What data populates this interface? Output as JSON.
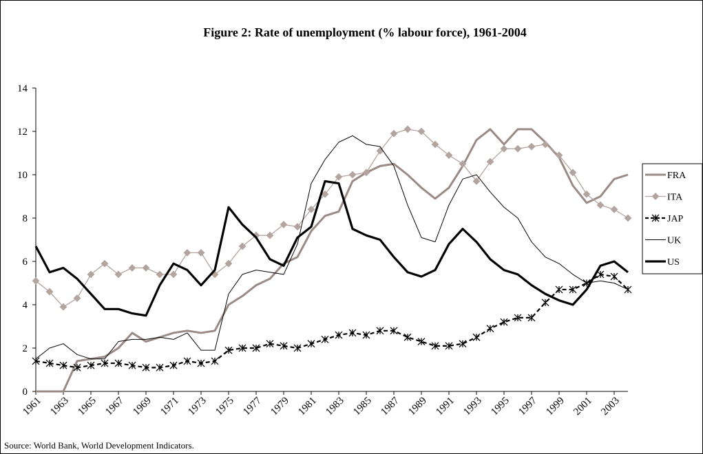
{
  "chart_data": {
    "type": "line",
    "title": "Figure 2: Rate of unemployment (% labour force), 1961-2004",
    "source": "Source: World Bank, World Development Indicators.",
    "x": [
      1961,
      1962,
      1963,
      1964,
      1965,
      1966,
      1967,
      1968,
      1969,
      1970,
      1971,
      1972,
      1973,
      1974,
      1975,
      1976,
      1977,
      1978,
      1979,
      1980,
      1981,
      1982,
      1983,
      1984,
      1985,
      1986,
      1987,
      1988,
      1989,
      1990,
      1991,
      1992,
      1993,
      1994,
      1995,
      1996,
      1997,
      1998,
      1999,
      2000,
      2001,
      2002,
      2003,
      2004
    ],
    "xlim": [
      1961,
      2004
    ],
    "xticks": [
      1961,
      1963,
      1965,
      1967,
      1969,
      1971,
      1973,
      1975,
      1977,
      1979,
      1981,
      1983,
      1985,
      1987,
      1989,
      1991,
      1993,
      1995,
      1997,
      1999,
      2001,
      2003
    ],
    "ylim": [
      0,
      14
    ],
    "yticks": [
      0,
      2,
      4,
      6,
      8,
      10,
      12,
      14
    ],
    "legend": "right",
    "series": [
      {
        "name": "FRA",
        "color": "#9a8a86",
        "width": 3,
        "dash": "solid",
        "marker": "none",
        "values": [
          0,
          0,
          0,
          1.4,
          1.5,
          1.6,
          2.0,
          2.7,
          2.3,
          2.5,
          2.7,
          2.8,
          2.7,
          2.8,
          4.0,
          4.4,
          4.9,
          5.2,
          5.9,
          6.2,
          7.4,
          8.1,
          8.3,
          9.7,
          10.1,
          10.4,
          10.5,
          10.0,
          9.4,
          8.9,
          9.4,
          10.4,
          11.6,
          12.1,
          11.4,
          12.1,
          12.1,
          11.5,
          10.8,
          9.5,
          8.7,
          9.0,
          9.8,
          10.0
        ]
      },
      {
        "name": "ITA",
        "color": "#b3a49f",
        "width": 1.3,
        "dash": "solid",
        "marker": "diamond",
        "values": [
          5.1,
          4.6,
          3.9,
          4.3,
          5.4,
          5.9,
          5.4,
          5.7,
          5.7,
          5.4,
          5.4,
          6.4,
          6.4,
          5.4,
          5.9,
          6.7,
          7.2,
          7.2,
          7.7,
          7.6,
          8.4,
          9.1,
          9.9,
          10.0,
          10.1,
          11.1,
          11.9,
          12.1,
          12.0,
          11.4,
          10.9,
          10.5,
          9.7,
          10.6,
          11.2,
          11.2,
          11.3,
          11.4,
          10.9,
          10.1,
          9.1,
          8.6,
          8.4,
          8.0
        ]
      },
      {
        "name": "JAP",
        "color": "#000000",
        "width": 2.2,
        "dash": "dashed",
        "marker": "star",
        "values": [
          1.4,
          1.3,
          1.2,
          1.1,
          1.2,
          1.3,
          1.3,
          1.2,
          1.1,
          1.1,
          1.2,
          1.4,
          1.3,
          1.4,
          1.9,
          2.0,
          2.0,
          2.2,
          2.1,
          2.0,
          2.2,
          2.4,
          2.6,
          2.7,
          2.6,
          2.8,
          2.8,
          2.5,
          2.3,
          2.1,
          2.1,
          2.2,
          2.5,
          2.9,
          3.2,
          3.4,
          3.4,
          4.1,
          4.7,
          4.7,
          5.0,
          5.4,
          5.3,
          4.7
        ]
      },
      {
        "name": "UK",
        "color": "#000000",
        "width": 1,
        "dash": "solid",
        "marker": "none",
        "values": [
          1.5,
          2.0,
          2.2,
          1.7,
          1.5,
          1.5,
          2.3,
          2.4,
          2.4,
          2.5,
          2.4,
          2.7,
          1.9,
          1.9,
          4.5,
          5.4,
          5.6,
          5.5,
          5.4,
          6.8,
          9.6,
          10.7,
          11.5,
          11.8,
          11.4,
          11.3,
          10.4,
          8.6,
          7.1,
          6.9,
          8.6,
          9.8,
          10.0,
          9.2,
          8.5,
          8.0,
          6.9,
          6.2,
          5.9,
          5.4,
          5.0,
          5.1,
          5.0,
          4.7
        ]
      },
      {
        "name": "US",
        "color": "#000000",
        "width": 3.2,
        "dash": "solid",
        "marker": "none",
        "values": [
          6.7,
          5.5,
          5.7,
          5.2,
          4.5,
          3.8,
          3.8,
          3.6,
          3.5,
          4.9,
          5.9,
          5.6,
          4.9,
          5.6,
          8.5,
          7.7,
          7.1,
          6.1,
          5.8,
          7.1,
          7.6,
          9.7,
          9.6,
          7.5,
          7.2,
          7.0,
          6.2,
          5.5,
          5.3,
          5.6,
          6.8,
          7.5,
          6.9,
          6.1,
          5.6,
          5.4,
          4.9,
          4.5,
          4.2,
          4.0,
          4.7,
          5.8,
          6.0,
          5.5
        ]
      }
    ]
  }
}
